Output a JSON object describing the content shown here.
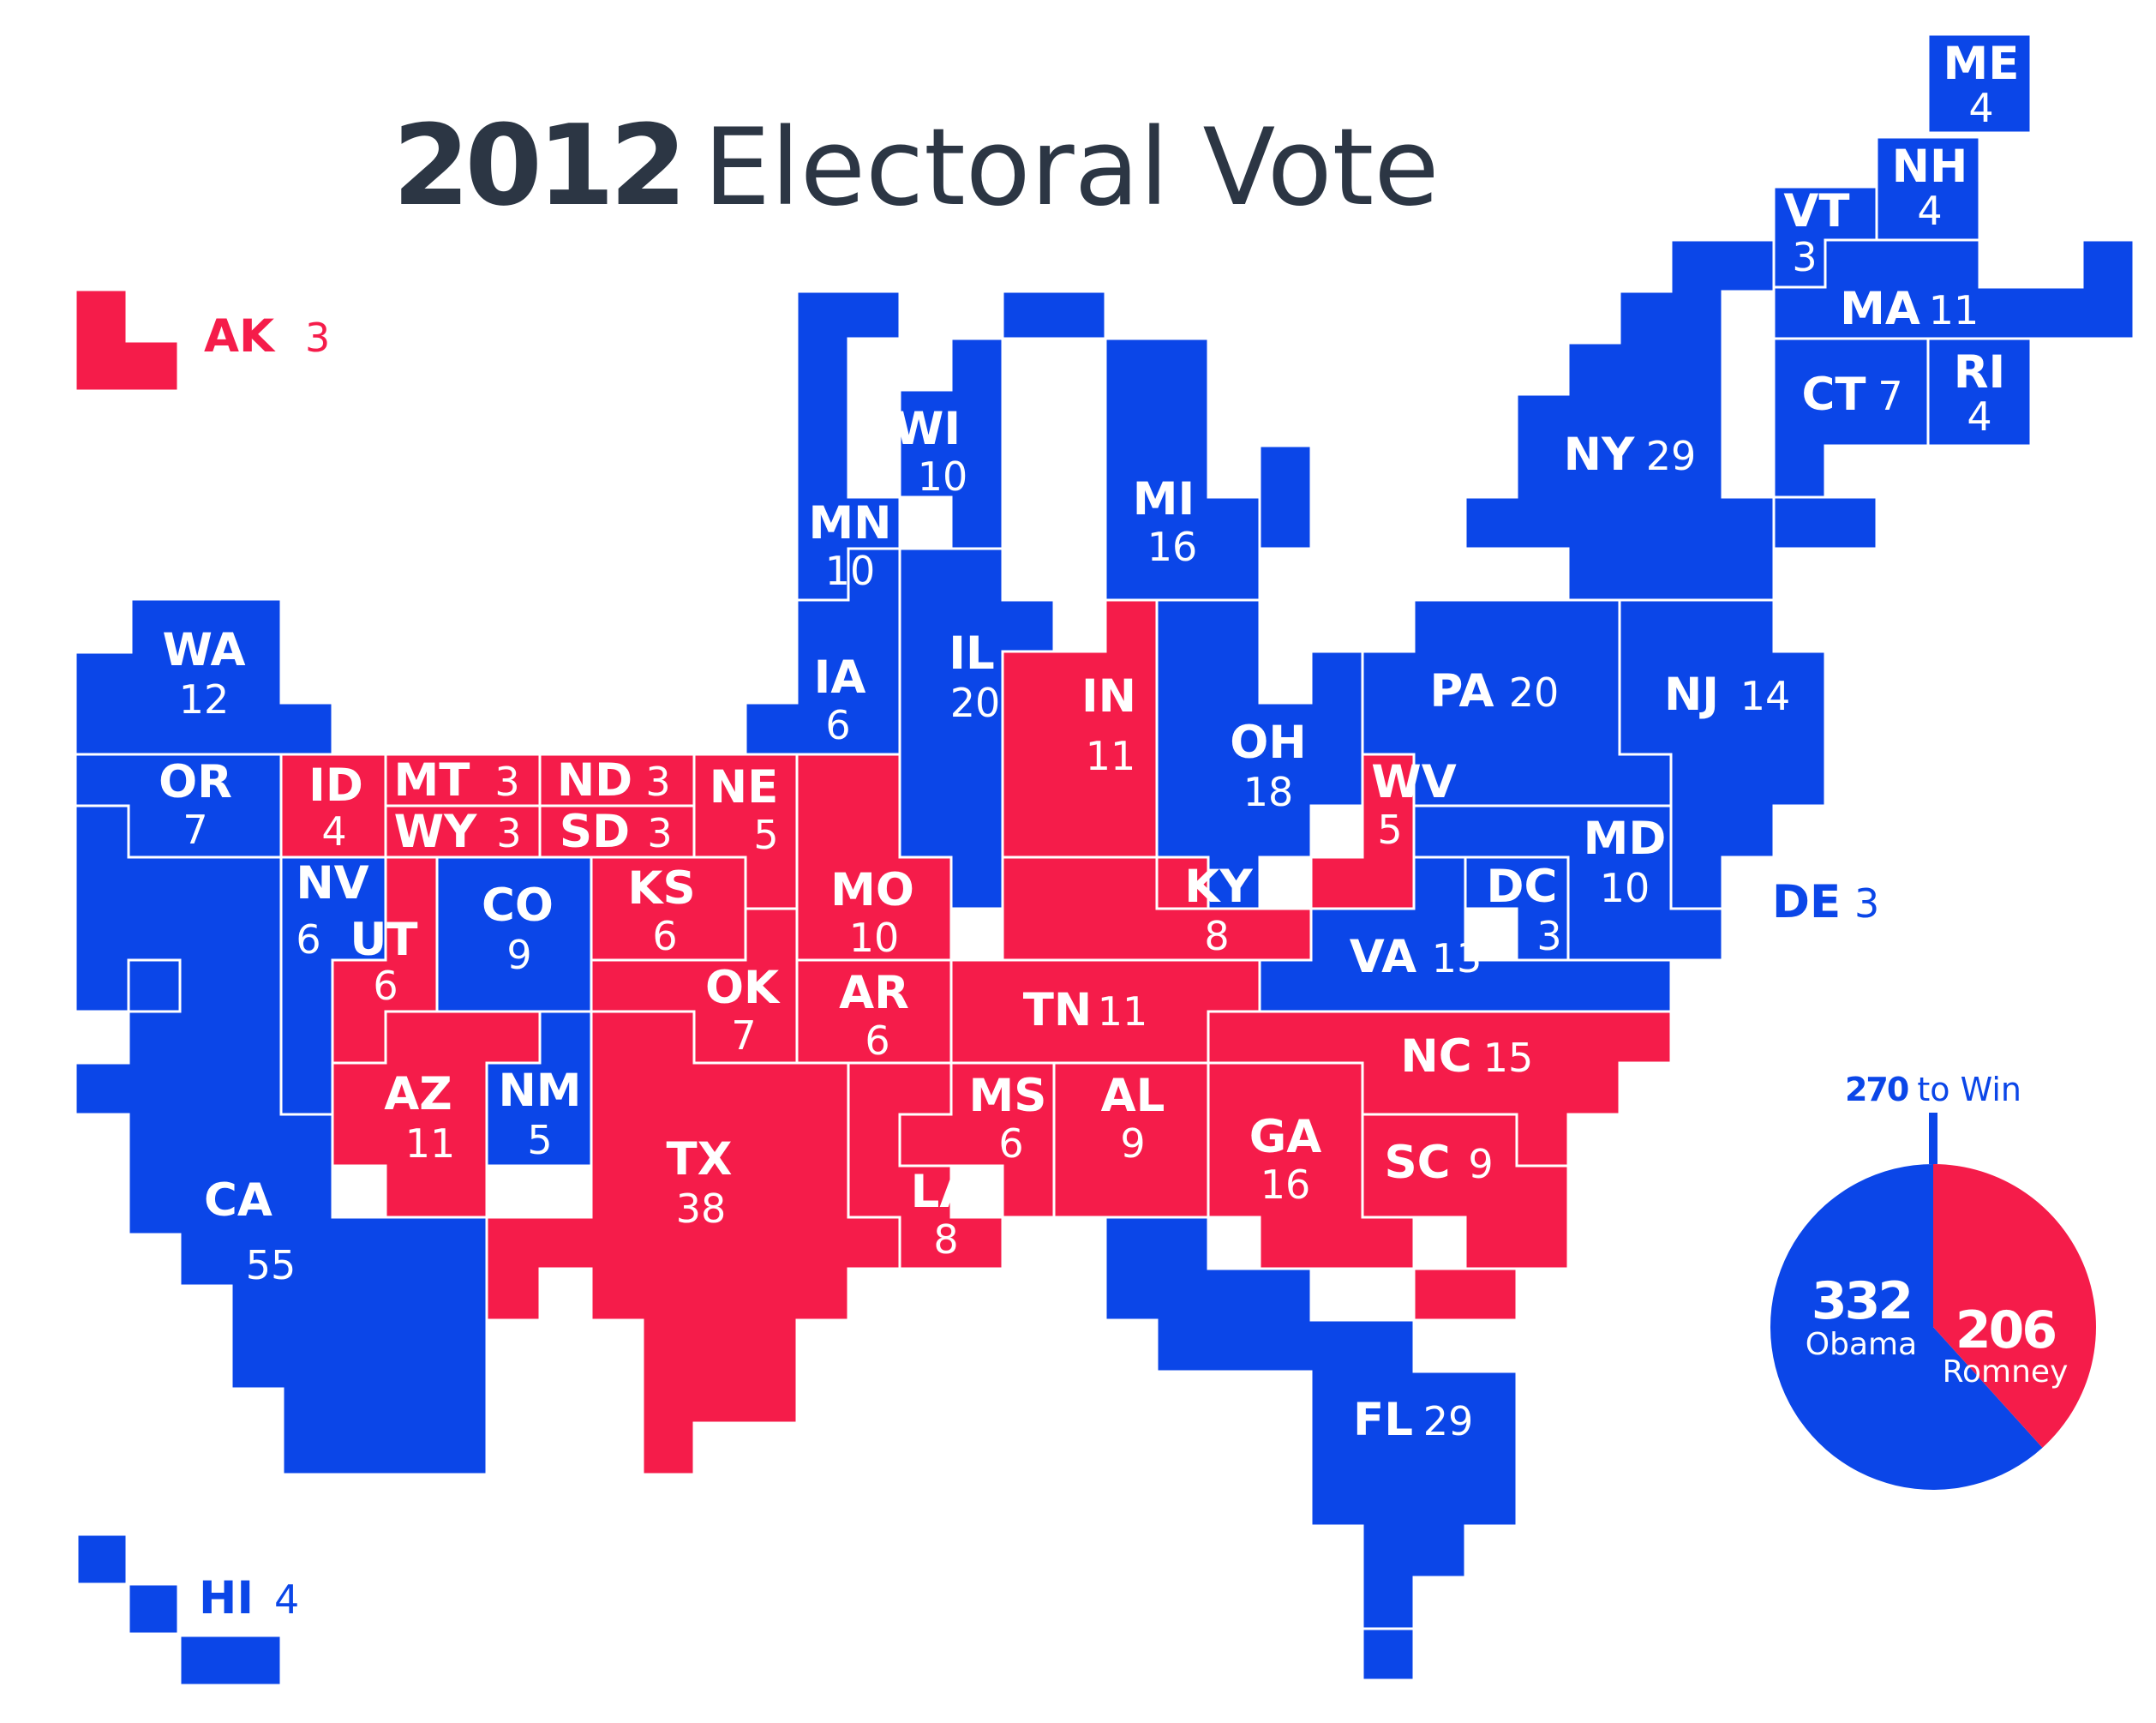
{
  "title": {
    "year": "2012",
    "rest": "Electoral Vote"
  },
  "colors": {
    "dem": "#0b46e8",
    "rep": "#f51c4a",
    "title": "#2c3644",
    "border": "#ffffff"
  },
  "threshold": {
    "num": "270",
    "text": "to Win"
  },
  "totals": {
    "dem": {
      "num": "332",
      "name": "Obama",
      "votes": 332
    },
    "rep": {
      "num": "206",
      "name": "Romney",
      "votes": 206
    }
  },
  "states": {
    "WA": {
      "abbr": "WA",
      "ev": "12",
      "party": "dem"
    },
    "OR": {
      "abbr": "OR",
      "ev": "7",
      "party": "dem"
    },
    "CA": {
      "abbr": "CA",
      "ev": "55",
      "party": "dem"
    },
    "NV": {
      "abbr": "NV",
      "ev": "6",
      "party": "dem"
    },
    "ID": {
      "abbr": "ID",
      "ev": "4",
      "party": "rep"
    },
    "MT": {
      "abbr": "MT",
      "ev": "3",
      "party": "rep"
    },
    "WY": {
      "abbr": "WY",
      "ev": "3",
      "party": "rep"
    },
    "UT": {
      "abbr": "UT",
      "ev": "6",
      "party": "rep"
    },
    "AZ": {
      "abbr": "AZ",
      "ev": "11",
      "party": "rep"
    },
    "CO": {
      "abbr": "CO",
      "ev": "9",
      "party": "dem"
    },
    "NM": {
      "abbr": "NM",
      "ev": "5",
      "party": "dem"
    },
    "ND": {
      "abbr": "ND",
      "ev": "3",
      "party": "rep"
    },
    "SD": {
      "abbr": "SD",
      "ev": "3",
      "party": "rep"
    },
    "NE": {
      "abbr": "NE",
      "ev": "5",
      "party": "rep"
    },
    "KS": {
      "abbr": "KS",
      "ev": "6",
      "party": "rep"
    },
    "OK": {
      "abbr": "OK",
      "ev": "7",
      "party": "rep"
    },
    "TX": {
      "abbr": "TX",
      "ev": "38",
      "party": "rep"
    },
    "MN": {
      "abbr": "MN",
      "ev": "10",
      "party": "dem"
    },
    "IA": {
      "abbr": "IA",
      "ev": "6",
      "party": "dem"
    },
    "MO": {
      "abbr": "MO",
      "ev": "10",
      "party": "rep"
    },
    "AR": {
      "abbr": "AR",
      "ev": "6",
      "party": "rep"
    },
    "LA": {
      "abbr": "LA",
      "ev": "8",
      "party": "rep"
    },
    "WI": {
      "abbr": "WI",
      "ev": "10",
      "party": "dem"
    },
    "IL": {
      "abbr": "IL",
      "ev": "20",
      "party": "dem"
    },
    "MI": {
      "abbr": "MI",
      "ev": "16",
      "party": "dem"
    },
    "IN": {
      "abbr": "IN",
      "ev": "11",
      "party": "rep"
    },
    "OH": {
      "abbr": "OH",
      "ev": "18",
      "party": "dem"
    },
    "KY": {
      "abbr": "KY",
      "ev": "8",
      "party": "rep"
    },
    "TN": {
      "abbr": "TN",
      "ev": "11",
      "party": "rep"
    },
    "MS": {
      "abbr": "MS",
      "ev": "6",
      "party": "rep"
    },
    "AL": {
      "abbr": "AL",
      "ev": "9",
      "party": "rep"
    },
    "GA": {
      "abbr": "GA",
      "ev": "16",
      "party": "rep"
    },
    "FL": {
      "abbr": "FL",
      "ev": "29",
      "party": "dem"
    },
    "SC": {
      "abbr": "SC",
      "ev": "9",
      "party": "rep"
    },
    "NC": {
      "abbr": "NC",
      "ev": "15",
      "party": "rep"
    },
    "VA": {
      "abbr": "VA",
      "ev": "13",
      "party": "dem"
    },
    "WV": {
      "abbr": "WV",
      "ev": "5",
      "party": "rep"
    },
    "DC": {
      "abbr": "DC",
      "ev": "3",
      "party": "dem"
    },
    "MD": {
      "abbr": "MD",
      "ev": "10",
      "party": "dem"
    },
    "PA": {
      "abbr": "PA",
      "ev": "20",
      "party": "dem"
    },
    "NJ": {
      "abbr": "NJ",
      "ev": "14",
      "party": "dem"
    },
    "NY": {
      "abbr": "NY",
      "ev": "29",
      "party": "dem"
    },
    "CT": {
      "abbr": "CT",
      "ev": "7",
      "party": "dem"
    },
    "RI": {
      "abbr": "RI",
      "ev": "4",
      "party": "dem"
    },
    "MA": {
      "abbr": "MA",
      "ev": "11",
      "party": "dem"
    },
    "VT": {
      "abbr": "VT",
      "ev": "3",
      "party": "dem"
    },
    "NH": {
      "abbr": "NH",
      "ev": "4",
      "party": "dem"
    },
    "ME": {
      "abbr": "ME",
      "ev": "4",
      "party": "dem"
    },
    "DE": {
      "abbr": "DE",
      "ev": "3",
      "party": "dem"
    },
    "AK": {
      "abbr": "AK",
      "ev": "3",
      "party": "rep"
    },
    "HI": {
      "abbr": "HI",
      "ev": "4",
      "party": "dem"
    }
  }
}
